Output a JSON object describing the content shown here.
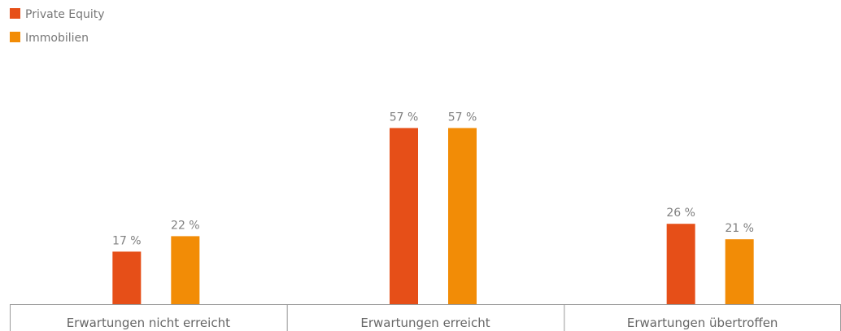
{
  "chart_data": {
    "type": "bar",
    "categories": [
      "Erwartungen nicht erreicht",
      "Erwartungen erreicht",
      "Erwartungen übertroffen"
    ],
    "series": [
      {
        "name": "Private Equity",
        "values": [
          17,
          57,
          26
        ],
        "labels": [
          "17 %",
          "57 %",
          "26 %"
        ],
        "color": "#e64f18"
      },
      {
        "name": "Immobilien",
        "values": [
          22,
          57,
          21
        ],
        "labels": [
          "22 %",
          "57 %",
          "21 %"
        ],
        "color": "#f28c06"
      }
    ],
    "ylim": [
      0,
      60
    ],
    "grid": false,
    "legend_position": "top-left",
    "axis_color": "#999999"
  }
}
